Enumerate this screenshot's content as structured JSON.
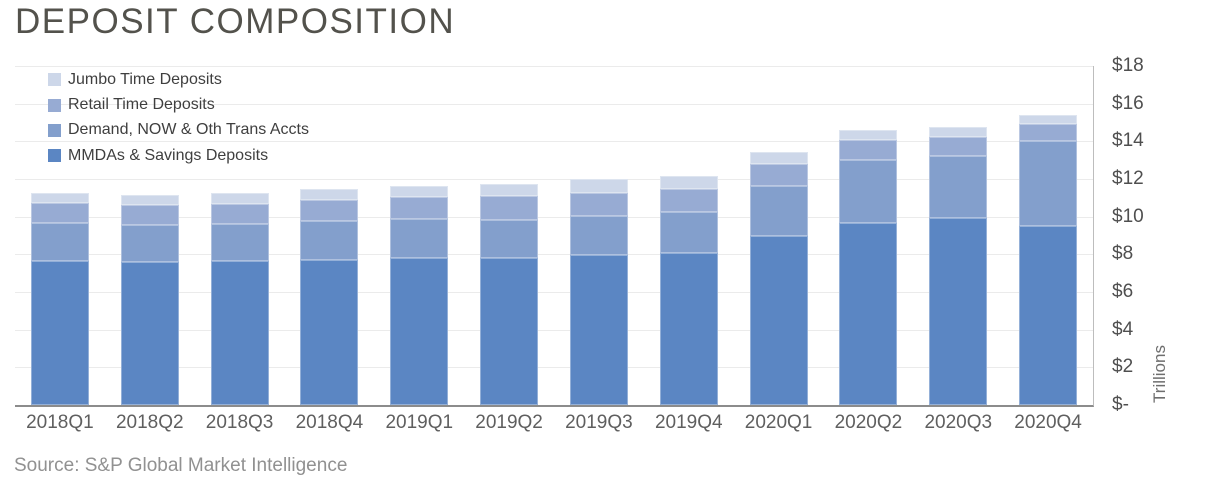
{
  "title": "DEPOSIT COMPOSITION",
  "source": "Source: S&P Global Market Intelligence",
  "y_axis": {
    "tick_labels": [
      "$18",
      "$16",
      "$14",
      "$12",
      "$10",
      "$8",
      "$6",
      "$4",
      "$2",
      "$-"
    ],
    "axis_title": "Trillions",
    "min": 0,
    "max": 18,
    "step": 2
  },
  "legend": [
    {
      "label": "Jumbo Time Deposits",
      "color": "#cdd7e9"
    },
    {
      "label": "Retail Time Deposits",
      "color": "#97abd3"
    },
    {
      "label": "Demand, NOW & Oth Trans Accts",
      "color": "#839fcc"
    },
    {
      "label": "MMDAs & Savings Deposits",
      "color": "#5b86c3"
    }
  ],
  "chart_data": {
    "type": "bar",
    "stacked": true,
    "title": "DEPOSIT COMPOSITION",
    "xlabel": "",
    "ylabel": "Trillions",
    "ylim": [
      0,
      18
    ],
    "ytick_step": 2,
    "grid": true,
    "legend_position": "top-left-inside",
    "categories": [
      "2018Q1",
      "2018Q2",
      "2018Q3",
      "2018Q4",
      "2019Q1",
      "2019Q2",
      "2019Q3",
      "2019Q4",
      "2020Q1",
      "2020Q2",
      "2020Q3",
      "2020Q4"
    ],
    "series": [
      {
        "name": "MMDAs & Savings Deposits",
        "color": "#5b86c3",
        "values": [
          7.65,
          7.6,
          7.65,
          7.7,
          7.8,
          7.8,
          7.95,
          8.1,
          8.95,
          9.65,
          9.95,
          9.5
        ]
      },
      {
        "name": "Demand, NOW & Oth Trans Accts",
        "color": "#839fcc",
        "values": [
          2.0,
          1.95,
          1.95,
          2.1,
          2.1,
          2.05,
          2.1,
          2.15,
          2.7,
          3.35,
          3.3,
          4.5
        ]
      },
      {
        "name": "Retail Time Deposits",
        "color": "#97abd3",
        "values": [
          1.05,
          1.05,
          1.1,
          1.1,
          1.15,
          1.25,
          1.2,
          1.25,
          1.15,
          1.05,
          1.0,
          0.9
        ]
      },
      {
        "name": "Jumbo Time Deposits",
        "color": "#cdd7e9",
        "values": [
          0.55,
          0.55,
          0.55,
          0.6,
          0.6,
          0.65,
          0.75,
          0.65,
          0.65,
          0.55,
          0.5,
          0.48
        ]
      }
    ],
    "totals": [
      11.25,
      11.15,
      11.25,
      11.5,
      11.65,
      11.75,
      12.0,
      12.15,
      13.45,
      14.6,
      14.75,
      15.38
    ]
  }
}
